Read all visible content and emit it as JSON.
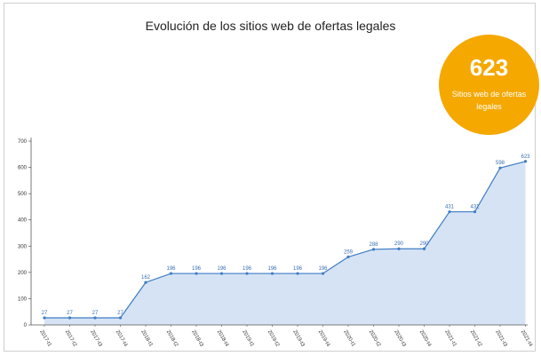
{
  "chart_data": {
    "type": "area",
    "title": "Evolución de los sitios web de ofertas legales",
    "x": [
      "2017-t1",
      "2017-t2",
      "2017-t3",
      "2017-t4",
      "2018-t1",
      "2018-t2",
      "2018-t3",
      "2018-t4",
      "2019-t1",
      "2019-t2",
      "2019-t3",
      "2019-t4",
      "2020-t1",
      "2020-t2",
      "2020-t3",
      "2020-t4",
      "2021-t1",
      "2021-t2",
      "2021-t3",
      "2021-t4"
    ],
    "series": [
      {
        "values": [
          27,
          27,
          27,
          27,
          162,
          196,
          196,
          196,
          196,
          196,
          196,
          196,
          259,
          288,
          290,
          290,
          431,
          431,
          598,
          623
        ]
      }
    ],
    "ylim": [
      0,
      700
    ],
    "yticks": [
      0,
      100,
      200,
      300,
      400,
      500,
      600,
      700
    ],
    "grid": false,
    "colors": {
      "line": "#3f7cc4",
      "fill": "#d5e3f5",
      "badge": "#f5a800"
    }
  },
  "badge": {
    "value": "623",
    "label": "Sitios web de ofertas legales"
  }
}
